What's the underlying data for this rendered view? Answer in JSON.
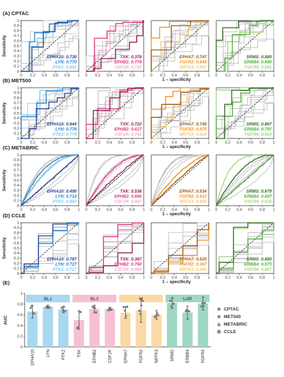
{
  "colors": {
    "blue": [
      "#1f3f8f",
      "#1f7fd0",
      "#7ec8ef"
    ],
    "pink": [
      "#8e1b55",
      "#e0307f",
      "#f2a6c7"
    ],
    "orange": [
      "#9a5a12",
      "#f0921e",
      "#f7c56e"
    ],
    "green": [
      "#2f6b1e",
      "#4caf3a",
      "#9fd57a"
    ],
    "grey": "#bdbdbd",
    "groupBg": [
      "#a8d8f0",
      "#f6c0d2",
      "#fbd9a6",
      "#9ed8c2"
    ]
  },
  "chart_data": {
    "type": "line",
    "axes": {
      "xlabel": "1 – specificity",
      "ylabel": "Sensitivity",
      "xticks": [
        "0",
        "0.2",
        "0.4",
        "0.6",
        "0.8",
        "1"
      ],
      "yticks": [
        "0",
        "0.1",
        "0.2",
        "0.3",
        "0.4",
        "0.5",
        "0.6",
        "0.7",
        "0.8",
        "0.9",
        "1"
      ]
    },
    "rows": [
      {
        "label": "(A) CPTAC",
        "style": "step",
        "panels": [
          {
            "colorKey": "blue",
            "entries": [
              {
                "gene": "EPHA10",
                "value": "0.730"
              },
              {
                "gene": "LYN",
                "value": "0.770"
              },
              {
                "gene": "PTK2",
                "value": "0.651"
              }
            ]
          },
          {
            "colorKey": "pink",
            "entries": [
              {
                "gene": "TXK",
                "value": "0.378"
              },
              {
                "gene": "EPHB2",
                "value": "0.778"
              },
              {
                "gene": "CSF1R",
                "value": "0.722"
              }
            ]
          },
          {
            "colorKey": "orange",
            "entries": [
              {
                "gene": "EPHA7",
                "value": "0.747"
              },
              {
                "gene": "FGFR2",
                "value": "0.849"
              },
              {
                "gene": "NRTK3",
                "value": "0.667"
              }
            ]
          },
          {
            "colorKey": "green",
            "entries": [
              {
                "gene": "SRMS",
                "value": "0.880"
              },
              {
                "gene": "ERBB4",
                "value": "0.696"
              },
              {
                "gene": "FGFR4",
                "value": "0.641"
              }
            ]
          }
        ]
      },
      {
        "label": "(B) MET500",
        "style": "step",
        "panels": [
          {
            "colorKey": "blue",
            "entries": [
              {
                "gene": "EPHA10",
                "value": "0.644"
              },
              {
                "gene": "LYN",
                "value": "0.778"
              },
              {
                "gene": "PTK2",
                "value": "0.779"
              }
            ]
          },
          {
            "colorKey": "pink",
            "entries": [
              {
                "gene": "TXK",
                "value": "0.722"
              },
              {
                "gene": "EPHB2",
                "value": "0.617"
              },
              {
                "gene": "CSF1R",
                "value": "0.741"
              }
            ]
          },
          {
            "colorKey": "orange",
            "entries": [
              {
                "gene": "EPHA7",
                "value": "0.748"
              },
              {
                "gene": "FGFR2",
                "value": "0.875"
              },
              {
                "gene": "NRTK3",
                "value": "0.629"
              }
            ]
          },
          {
            "colorKey": "green",
            "entries": [
              {
                "gene": "SRMS",
                "value": "0.867"
              },
              {
                "gene": "ERBB4",
                "value": "0.797"
              },
              {
                "gene": "FGFR4",
                "value": "0.924"
              }
            ]
          }
        ]
      },
      {
        "label": "(C) METABRIC",
        "style": "smooth",
        "panels": [
          {
            "colorKey": "blue",
            "entries": [
              {
                "gene": "EPHA10",
                "value": "0.490"
              },
              {
                "gene": "LYN",
                "value": "0.714"
              },
              {
                "gene": "PTK2",
                "value": "0.652"
              }
            ]
          },
          {
            "colorKey": "pink",
            "entries": [
              {
                "gene": "TXK",
                "value": "0.536"
              },
              {
                "gene": "EPHB2",
                "value": "0.666"
              },
              {
                "gene": "CSF1R",
                "value": "0.687"
              }
            ]
          },
          {
            "colorKey": "orange",
            "entries": [
              {
                "gene": "EPHA7",
                "value": "0.534"
              },
              {
                "gene": "FGFR2",
                "value": "0.610"
              },
              {
                "gene": "NRTK3",
                "value": "0.609"
              }
            ]
          },
          {
            "colorKey": "green",
            "entries": [
              {
                "gene": "SRMS",
                "value": "0.679"
              },
              {
                "gene": "ERBB4",
                "value": "0.497"
              },
              {
                "gene": "FGFR4",
                "value": "0.818"
              }
            ]
          }
        ]
      },
      {
        "label": "(D) CCLE",
        "style": "coarse",
        "panels": [
          {
            "colorKey": "blue",
            "entries": [
              {
                "gene": "EPHA10",
                "value": "0.787"
              },
              {
                "gene": "LYN",
                "value": "0.727"
              },
              {
                "gene": "PTK2",
                "value": "0.727"
              }
            ]
          },
          {
            "colorKey": "pink",
            "entries": [
              {
                "gene": "TXK",
                "value": "0.367"
              },
              {
                "gene": "EPHB2",
                "value": "0.760"
              },
              {
                "gene": "CSF1R",
                "value": "0.680"
              }
            ]
          },
          {
            "colorKey": "orange",
            "entries": [
              {
                "gene": "EPHA7",
                "value": "0.520"
              },
              {
                "gene": "FGFR2",
                "value": "0.367"
              },
              {
                "gene": "NRTK3",
                "value": "0.493"
              }
            ]
          },
          {
            "colorKey": "green",
            "entries": [
              {
                "gene": "SRMS",
                "value": "0.860"
              },
              {
                "gene": "ERBB4",
                "value": "0.573"
              },
              {
                "gene": "FGFR4",
                "value": "0.867"
              }
            ]
          }
        ]
      }
    ],
    "bar": {
      "label": "(E)",
      "type": "bar",
      "ylabel": "AUC",
      "ylim": [
        0,
        1
      ],
      "yticks": [
        "0",
        "0.2",
        "0.4",
        "0.6",
        "0.8",
        "1"
      ],
      "categories": [
        "EPHA10",
        "LYN",
        "PTK2",
        "TXK",
        "EPHB2",
        "CSF1R",
        "EPHA7",
        "FGFR2",
        "NRTK3",
        "SRMS",
        "ERBB4",
        "FGFR4"
      ],
      "values": [
        0.66,
        0.75,
        0.7,
        0.5,
        0.71,
        0.71,
        0.64,
        0.68,
        0.6,
        0.82,
        0.64,
        0.81
      ],
      "errors": [
        0.12,
        0.03,
        0.06,
        0.17,
        0.07,
        0.03,
        0.11,
        0.22,
        0.08,
        0.1,
        0.12,
        0.12
      ],
      "groups": [
        {
          "name": "BL1",
          "start": 0,
          "end": 2
        },
        {
          "name": "BL2",
          "start": 3,
          "end": 5
        },
        {
          "name": "M",
          "start": 6,
          "end": 8
        },
        {
          "name": "LAR",
          "start": 9,
          "end": 11
        }
      ],
      "legend": [
        "CPTAC",
        "MET500",
        "METABRIC",
        "CCLE"
      ]
    }
  }
}
